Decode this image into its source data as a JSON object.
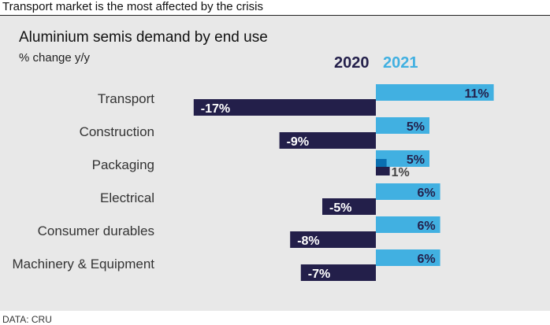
{
  "headline": "Transport market is the most affected by the crisis",
  "source": "DATA: CRU",
  "colors": {
    "series_2020": "#231f4a",
    "series_2021": "#41b0e1",
    "label_2021": "#231f4a",
    "background": "#e8e8e8",
    "inner_bar_2021": "#0a6fb0"
  },
  "chart_data": {
    "type": "bar",
    "orientation": "horizontal",
    "title": "Aluminium semis demand by end use",
    "subtitle": "% change y/y",
    "categories": [
      "Transport",
      "Construction",
      "Packaging",
      "Electrical",
      "Consumer durables",
      "Machinery & Equipment"
    ],
    "series": [
      {
        "name": "2020",
        "values": [
          -17,
          -9,
          1,
          -5,
          -8,
          -7
        ],
        "labels": [
          "-17%",
          "-9%",
          "1%",
          "-5%",
          "-8%",
          "-7%"
        ]
      },
      {
        "name": "2021",
        "values": [
          11,
          5,
          5,
          6,
          6,
          6
        ],
        "labels": [
          "11%",
          "5%",
          "5%",
          "6%",
          "6%",
          "6%"
        ]
      }
    ],
    "xlim": [
      -17,
      11
    ],
    "grid": false,
    "legend": "top"
  }
}
